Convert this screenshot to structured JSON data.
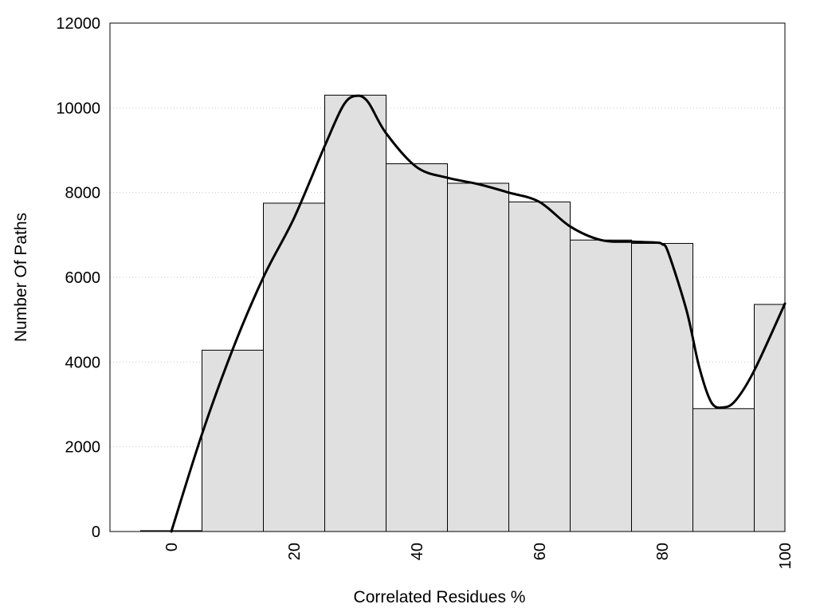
{
  "chart_data": {
    "type": "bar",
    "title": "",
    "xlabel": "Correlated Residues %",
    "ylabel": "Number Of Paths",
    "x_range": [
      -10,
      100
    ],
    "ylim": [
      0,
      12000
    ],
    "x_ticks": [
      0,
      20,
      40,
      60,
      80,
      100
    ],
    "y_ticks": [
      0,
      2000,
      4000,
      6000,
      8000,
      10000,
      12000
    ],
    "grid": "horizontal dotted",
    "legend": "none",
    "bin_width": 10,
    "bins": [
      {
        "center": 0,
        "value": 20
      },
      {
        "center": 10,
        "value": 4280
      },
      {
        "center": 20,
        "value": 7750
      },
      {
        "center": 30,
        "value": 10300
      },
      {
        "center": 40,
        "value": 8680
      },
      {
        "center": 50,
        "value": 8220
      },
      {
        "center": 60,
        "value": 7780
      },
      {
        "center": 70,
        "value": 6880
      },
      {
        "center": 80,
        "value": 6800
      },
      {
        "center": 90,
        "value": 2900
      },
      {
        "center": 100,
        "value": 5360
      }
    ],
    "series": [
      {
        "type": "line",
        "x": [
          0,
          5,
          10,
          15,
          20,
          25,
          28,
          30,
          32,
          35,
          40,
          45,
          50,
          55,
          60,
          65,
          70,
          75,
          79,
          80,
          81,
          84,
          86,
          88,
          90,
          92,
          95,
          100
        ],
        "y": [
          0,
          2300,
          4300,
          6000,
          7400,
          9100,
          10050,
          10280,
          10150,
          9400,
          8600,
          8350,
          8200,
          8000,
          7780,
          7200,
          6880,
          6840,
          6820,
          6780,
          6580,
          5200,
          3900,
          3050,
          2930,
          3100,
          3800,
          5380
        ]
      }
    ],
    "colors": {
      "bar_fill": "#e0e0e0",
      "bar_stroke": "#000000",
      "line": "#000000",
      "grid": "#c8c8c8"
    }
  }
}
